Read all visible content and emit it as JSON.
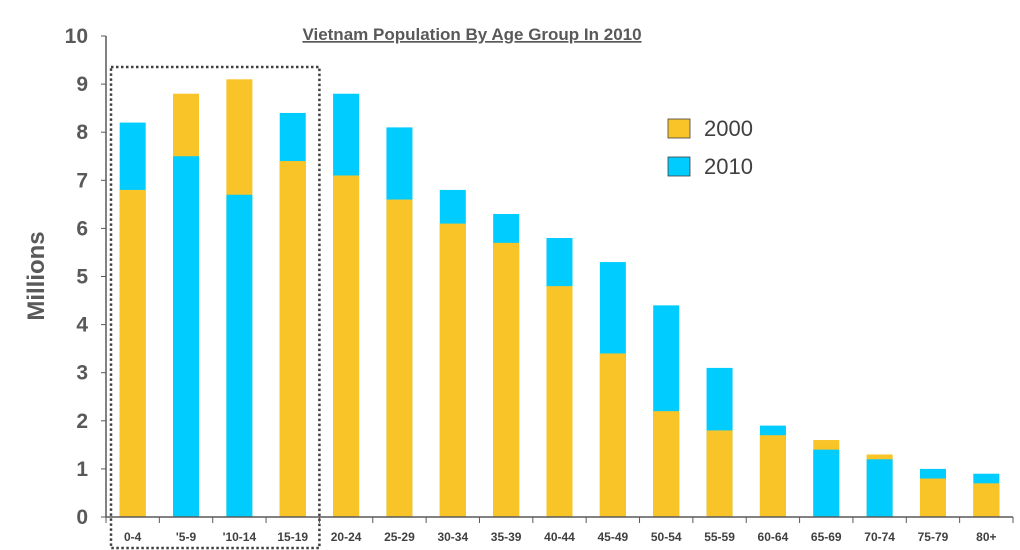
{
  "chart_data": {
    "type": "bar",
    "title": "Vietnam Population By Age Group In 2010",
    "xlabel": "",
    "ylabel": "Millions",
    "ylim": [
      0,
      10
    ],
    "yticks": [
      "0",
      "1",
      "2",
      "3",
      "4",
      "5",
      "6",
      "7",
      "8",
      "9",
      "10"
    ],
    "categories": [
      "0-4",
      "'5-9",
      "'10-14",
      "15-19",
      "20-24",
      "25-29",
      "30-34",
      "35-39",
      "40-44",
      "45-49",
      "50-54",
      "55-59",
      "60-64",
      "65-69",
      "70-74",
      "75-79",
      "80+"
    ],
    "series": [
      {
        "name": "2000",
        "color": "#F9C428",
        "values": [
          6.8,
          8.8,
          9.1,
          7.4,
          7.1,
          6.6,
          6.1,
          5.7,
          4.8,
          3.4,
          2.2,
          1.8,
          1.7,
          1.6,
          1.3,
          0.8,
          0.7
        ]
      },
      {
        "name": "2010",
        "color": "#00CCFF",
        "values": [
          8.2,
          7.5,
          6.7,
          8.4,
          8.8,
          8.1,
          6.8,
          6.3,
          5.8,
          5.3,
          4.4,
          3.1,
          1.9,
          1.4,
          1.2,
          1.0,
          0.9
        ]
      }
    ],
    "legend": [
      "2000",
      "2010"
    ],
    "legend_position": "top-right",
    "highlight": {
      "style": "dotted-box",
      "categories": [
        "0-4",
        "'5-9",
        "'10-14",
        "15-19"
      ]
    }
  }
}
